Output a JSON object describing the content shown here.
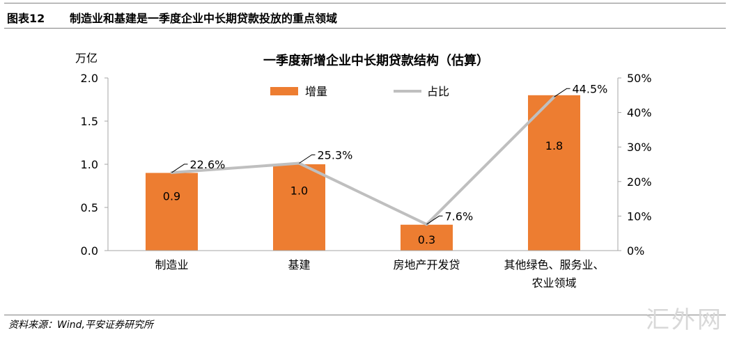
{
  "header": {
    "figure_number": "图表12",
    "figure_title": "制造业和基建是一季度企业中长期贷款投放的重点领域"
  },
  "footer": {
    "source": "资料来源：Wind,平安证券研究所",
    "watermark": "汇外网"
  },
  "colors": {
    "bar": "#ED7D31",
    "line": "#BFBFBF",
    "axis": "#A6A6A6"
  },
  "chart_data": {
    "type": "bar",
    "title": "一季度新增企业中长期贷款结构（估算）",
    "left_axis_unit": "万亿",
    "categories": [
      [
        "制造业"
      ],
      [
        "基建"
      ],
      [
        "房地产开发贷"
      ],
      [
        "其他绿色、服务业、",
        "农业领域"
      ]
    ],
    "y_ticks": [
      "0.0",
      "0.5",
      "1.0",
      "1.5",
      "2.0"
    ],
    "y2_ticks": [
      "0%",
      "10%",
      "20%",
      "30%",
      "40%",
      "50%"
    ],
    "ylim": [
      0,
      2.0
    ],
    "y2lim": [
      0,
      50
    ],
    "series": [
      {
        "name": "增量",
        "kind": "bar",
        "values": [
          0.9,
          1.0,
          0.3,
          1.8
        ],
        "labels": [
          "0.9",
          "1.0",
          "0.3",
          "1.8"
        ]
      },
      {
        "name": "占比",
        "kind": "line",
        "axis": "right",
        "values": [
          22.6,
          25.3,
          7.6,
          44.5
        ],
        "labels": [
          "22.6%",
          "25.3%",
          "7.6%",
          "44.5%"
        ]
      }
    ],
    "legend": "top-center"
  }
}
